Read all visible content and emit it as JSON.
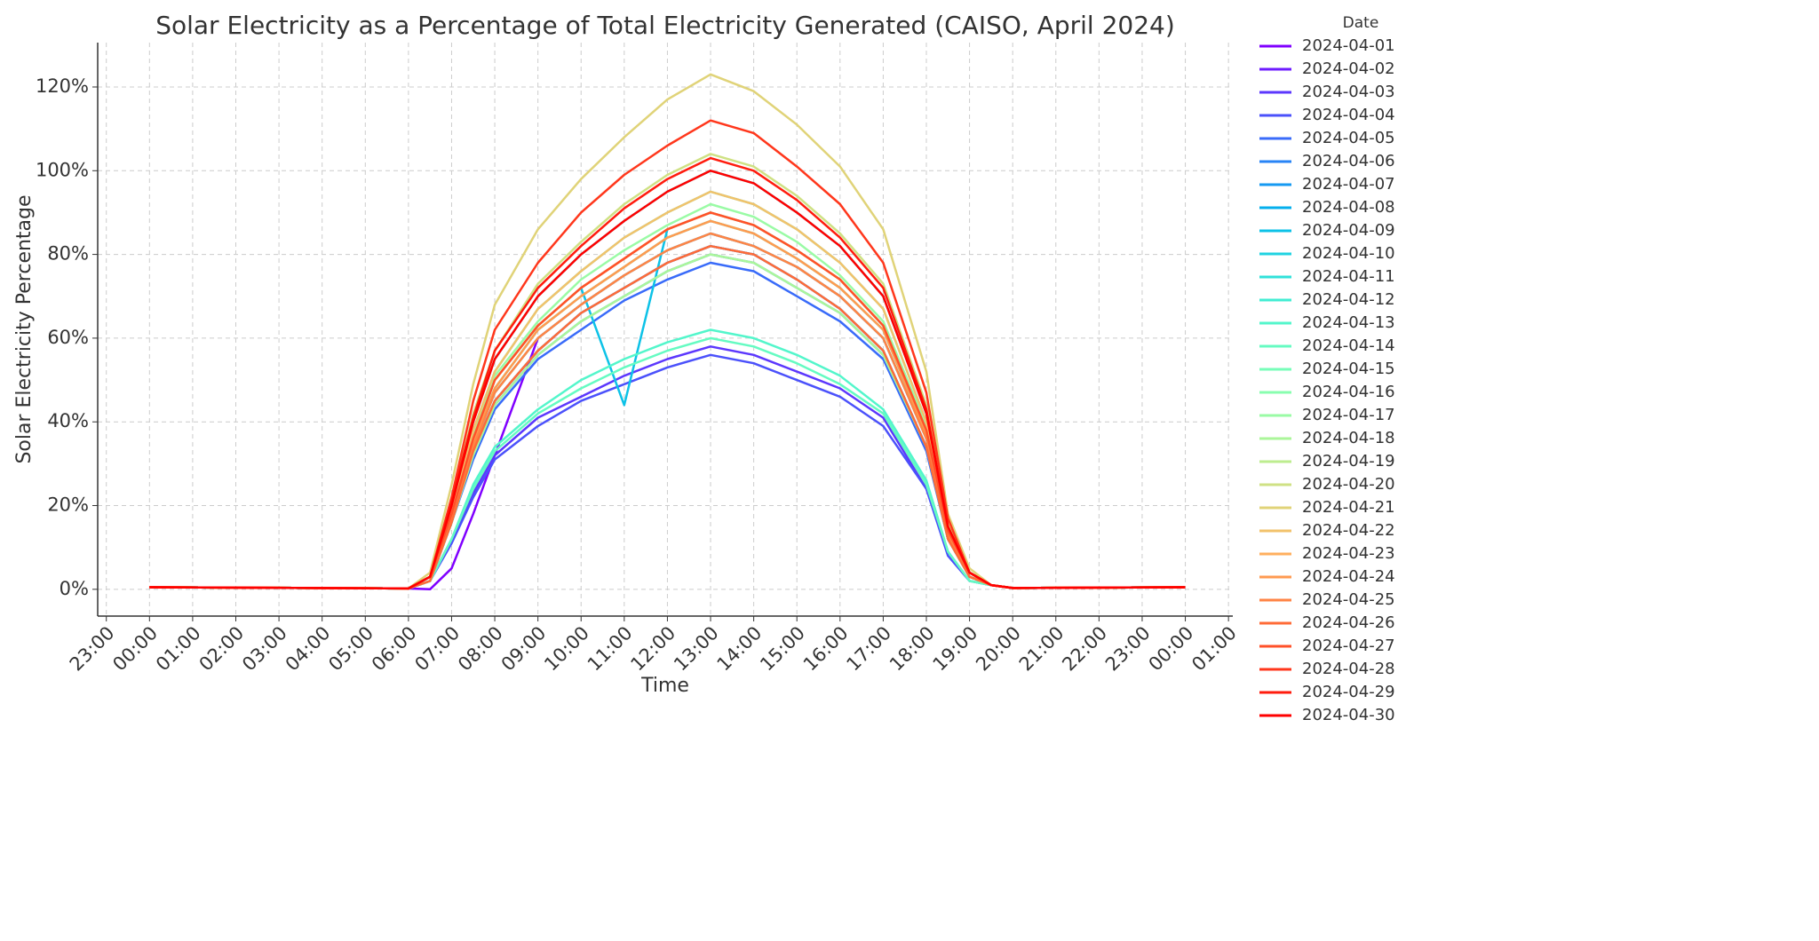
{
  "chart_data": {
    "type": "line",
    "title": "Solar Electricity as a Percentage of Total Electricity Generated (CAISO, April 2024)",
    "x_label": "Time",
    "y_label": "Solar Electricity Percentage",
    "legend_title": "Date",
    "legend": "outside-right",
    "grid": true,
    "x": [
      0,
      6,
      6.5,
      7,
      7.5,
      8,
      9,
      10,
      11,
      12,
      13,
      14,
      15,
      16,
      17,
      18,
      18.5,
      19,
      19.5,
      20,
      24
    ],
    "xlim": [
      -1.2,
      25.1
    ],
    "xticks": [
      {
        "value": -1,
        "label": "23:00"
      },
      {
        "value": 0,
        "label": "00:00"
      },
      {
        "value": 1,
        "label": "01:00"
      },
      {
        "value": 2,
        "label": "02:00"
      },
      {
        "value": 3,
        "label": "03:00"
      },
      {
        "value": 4,
        "label": "04:00"
      },
      {
        "value": 5,
        "label": "05:00"
      },
      {
        "value": 6,
        "label": "06:00"
      },
      {
        "value": 7,
        "label": "07:00"
      },
      {
        "value": 8,
        "label": "08:00"
      },
      {
        "value": 9,
        "label": "09:00"
      },
      {
        "value": 10,
        "label": "10:00"
      },
      {
        "value": 11,
        "label": "11:00"
      },
      {
        "value": 12,
        "label": "12:00"
      },
      {
        "value": 13,
        "label": "13:00"
      },
      {
        "value": 14,
        "label": "14:00"
      },
      {
        "value": 15,
        "label": "15:00"
      },
      {
        "value": 16,
        "label": "16:00"
      },
      {
        "value": 17,
        "label": "17:00"
      },
      {
        "value": 18,
        "label": "18:00"
      },
      {
        "value": 19,
        "label": "19:00"
      },
      {
        "value": 20,
        "label": "20:00"
      },
      {
        "value": 21,
        "label": "21:00"
      },
      {
        "value": 22,
        "label": "22:00"
      },
      {
        "value": 23,
        "label": "23:00"
      },
      {
        "value": 24,
        "label": "00:00"
      },
      {
        "value": 25,
        "label": "01:00"
      }
    ],
    "ylim": [
      -6.4,
      130.6
    ],
    "yticks": [
      {
        "value": 0,
        "label": "0%"
      },
      {
        "value": 20,
        "label": "20%"
      },
      {
        "value": 40,
        "label": "40%"
      },
      {
        "value": 60,
        "label": "60%"
      },
      {
        "value": 80,
        "label": "80%"
      },
      {
        "value": 100,
        "label": "100%"
      },
      {
        "value": 120,
        "label": "120%"
      }
    ],
    "series": [
      {
        "name": "2024-04-01",
        "color": "#8000ff",
        "values": [
          0.5,
          0.2,
          0,
          5,
          18,
          32,
          60,
          68,
          75,
          81,
          85,
          82,
          77,
          70,
          60,
          36,
          13,
          3,
          1,
          0.3,
          0.5
        ]
      },
      {
        "name": "2024-04-02",
        "color": "#6e1cff",
        "values": [
          0.5,
          0.2,
          2,
          16,
          33,
          45,
          57,
          66,
          72,
          78,
          82,
          80,
          74,
          67,
          57,
          34,
          12,
          3,
          1,
          0.3,
          0.5
        ]
      },
      {
        "name": "2024-04-03",
        "color": "#5c37fd",
        "values": [
          0.5,
          0.2,
          2,
          12,
          23,
          32,
          41,
          46,
          51,
          55,
          58,
          56,
          52,
          48,
          41,
          24,
          9,
          2,
          1,
          0.3,
          0.5
        ]
      },
      {
        "name": "2024-04-04",
        "color": "#4b51fb",
        "values": [
          0.5,
          0.2,
          2,
          11,
          22,
          31,
          39,
          45,
          49,
          53,
          56,
          54,
          50,
          46,
          39,
          24,
          8,
          2,
          1,
          0.3,
          0.5
        ]
      },
      {
        "name": "2024-04-05",
        "color": "#396bf9",
        "values": [
          0.5,
          0.2,
          2,
          16,
          31,
          43,
          55,
          62,
          69,
          74,
          78,
          76,
          70,
          64,
          55,
          33,
          12,
          3,
          1,
          0.3,
          0.5
        ]
      },
      {
        "name": "2024-04-06",
        "color": "#2884f6",
        "values": [
          0.5,
          0.2,
          3,
          17,
          34,
          47,
          60,
          68,
          75,
          81,
          85,
          82,
          77,
          70,
          60,
          36,
          13,
          3,
          1,
          0.3,
          0.5
        ]
      },
      {
        "name": "2024-04-07",
        "color": "#169af2",
        "values": [
          0.5,
          0.2,
          2,
          16,
          32,
          44,
          56,
          64,
          70,
          76,
          80,
          78,
          72,
          66,
          56,
          34,
          12,
          3,
          1,
          0.3,
          0.5
        ]
      },
      {
        "name": "2024-04-08",
        "color": "#04afed",
        "values": [
          0.5,
          0.2,
          2,
          16,
          33,
          45,
          57,
          66,
          72,
          78,
          82,
          80,
          74,
          67,
          57,
          34,
          12,
          3,
          1,
          0.3,
          0.5
        ]
      },
      {
        "name": "2024-04-09",
        "color": "#0dc2e7",
        "values": [
          0.5,
          0.2,
          3,
          18,
          36,
          50,
          63,
          72,
          44,
          86,
          90,
          87,
          81,
          74,
          63,
          38,
          14,
          4,
          1,
          0.3,
          0.5
        ]
      },
      {
        "name": "2024-04-10",
        "color": "#1fd3e1",
        "values": [
          0.5,
          0.2,
          3,
          20,
          40,
          55,
          70,
          80,
          88,
          95,
          100,
          97,
          90,
          82,
          70,
          42,
          15,
          4,
          1,
          0.3,
          0.5
        ]
      },
      {
        "name": "2024-04-11",
        "color": "#30e1da",
        "values": [
          0.5,
          0.2,
          3,
          18,
          35,
          48,
          62,
          70,
          77,
          84,
          88,
          85,
          79,
          72,
          62,
          37,
          13,
          4,
          1,
          0.3,
          0.5
        ]
      },
      {
        "name": "2024-04-12",
        "color": "#42edd3",
        "values": [
          0.5,
          0.2,
          3,
          19,
          38,
          52,
          67,
          76,
          84,
          90,
          95,
          92,
          86,
          78,
          67,
          40,
          14,
          4,
          1,
          0.3,
          0.5
        ]
      },
      {
        "name": "2024-04-13",
        "color": "#53f6cb",
        "values": [
          0.5,
          0.2,
          2,
          12,
          25,
          34,
          43,
          50,
          55,
          59,
          62,
          60,
          56,
          51,
          43,
          26,
          9,
          2,
          1,
          0.3,
          0.5
        ]
      },
      {
        "name": "2024-04-14",
        "color": "#65fbc2",
        "values": [
          0.5,
          0.2,
          2,
          12,
          24,
          33,
          42,
          48,
          53,
          57,
          60,
          58,
          54,
          49,
          42,
          25,
          9,
          2,
          1,
          0.3,
          0.5
        ]
      },
      {
        "name": "2024-04-15",
        "color": "#77feb9",
        "values": [
          0.5,
          0.2,
          3,
          17,
          34,
          47,
          60,
          68,
          75,
          81,
          85,
          82,
          77,
          70,
          60,
          36,
          13,
          3,
          1,
          0.3,
          0.5
        ]
      },
      {
        "name": "2024-04-16",
        "color": "#88feaf",
        "values": [
          0.5,
          0.2,
          3,
          18,
          35,
          48,
          62,
          70,
          77,
          84,
          88,
          85,
          79,
          72,
          62,
          37,
          13,
          4,
          1,
          0.3,
          0.5
        ]
      },
      {
        "name": "2024-04-17",
        "color": "#9afba5",
        "values": [
          0.5,
          0.2,
          3,
          18,
          37,
          51,
          64,
          74,
          81,
          87,
          92,
          89,
          83,
          75,
          64,
          39,
          14,
          4,
          1,
          0.3,
          0.5
        ]
      },
      {
        "name": "2024-04-18",
        "color": "#abf69a",
        "values": [
          0.5,
          0.2,
          2,
          16,
          32,
          44,
          56,
          64,
          70,
          76,
          80,
          78,
          72,
          66,
          56,
          34,
          12,
          3,
          1,
          0.3,
          0.5
        ]
      },
      {
        "name": "2024-04-19",
        "color": "#bded8f",
        "values": [
          0.5,
          0.2,
          3,
          18,
          36,
          50,
          63,
          72,
          79,
          86,
          90,
          87,
          81,
          74,
          63,
          38,
          14,
          4,
          1,
          0.3,
          0.5
        ]
      },
      {
        "name": "2024-04-20",
        "color": "#cfe184",
        "values": [
          0.5,
          0.2,
          3,
          21,
          42,
          57,
          73,
          83,
          92,
          99,
          104,
          101,
          94,
          85,
          73,
          44,
          16,
          4,
          1,
          0.3,
          0.5
        ]
      },
      {
        "name": "2024-04-21",
        "color": "#e0d378",
        "values": [
          0.5,
          0.2,
          4,
          25,
          49,
          68,
          86,
          98,
          108,
          117,
          123,
          119,
          111,
          101,
          86,
          52,
          18,
          5,
          1,
          0.3,
          0.5
        ]
      },
      {
        "name": "2024-04-22",
        "color": "#f2c26b",
        "values": [
          0.5,
          0.2,
          3,
          19,
          38,
          52,
          67,
          76,
          84,
          90,
          95,
          92,
          86,
          78,
          67,
          40,
          14,
          4,
          1,
          0.3,
          0.5
        ]
      },
      {
        "name": "2024-04-23",
        "color": "#ffaf5e",
        "values": [
          0.5,
          0.2,
          3,
          18,
          36,
          50,
          63,
          72,
          79,
          86,
          90,
          87,
          81,
          74,
          63,
          38,
          14,
          4,
          1,
          0.3,
          0.5
        ]
      },
      {
        "name": "2024-04-24",
        "color": "#ff9a51",
        "values": [
          0.5,
          0.2,
          3,
          18,
          35,
          48,
          62,
          70,
          77,
          84,
          88,
          85,
          79,
          72,
          62,
          37,
          13,
          4,
          1,
          0.3,
          0.5
        ]
      },
      {
        "name": "2024-04-25",
        "color": "#ff8445",
        "values": [
          0.5,
          0.2,
          3,
          17,
          34,
          47,
          60,
          68,
          75,
          81,
          85,
          82,
          77,
          70,
          60,
          36,
          13,
          3,
          1,
          0.3,
          0.5
        ]
      },
      {
        "name": "2024-04-26",
        "color": "#ff6b37",
        "values": [
          0.5,
          0.2,
          2,
          16,
          33,
          45,
          57,
          66,
          72,
          78,
          82,
          80,
          74,
          67,
          57,
          34,
          12,
          3,
          1,
          0.3,
          0.5
        ]
      },
      {
        "name": "2024-04-27",
        "color": "#ff5129",
        "values": [
          0.5,
          0.2,
          3,
          18,
          36,
          50,
          63,
          72,
          79,
          86,
          90,
          87,
          81,
          74,
          63,
          38,
          14,
          4,
          1,
          0.3,
          0.5
        ]
      },
      {
        "name": "2024-04-28",
        "color": "#ff371c",
        "values": [
          0.5,
          0.2,
          3,
          22,
          45,
          62,
          78,
          90,
          99,
          106,
          112,
          109,
          101,
          92,
          78,
          47,
          17,
          4,
          1,
          0.3,
          0.5
        ]
      },
      {
        "name": "2024-04-29",
        "color": "#ff1c0e",
        "values": [
          0.5,
          0.2,
          3,
          21,
          41,
          57,
          72,
          82,
          91,
          98,
          103,
          100,
          93,
          84,
          72,
          43,
          15,
          4,
          1,
          0.3,
          0.5
        ]
      },
      {
        "name": "2024-04-30",
        "color": "#ff0000",
        "values": [
          0.5,
          0.2,
          3,
          20,
          40,
          55,
          70,
          80,
          88,
          95,
          100,
          97,
          90,
          82,
          70,
          42,
          15,
          4,
          1,
          0.3,
          0.5
        ]
      }
    ]
  }
}
